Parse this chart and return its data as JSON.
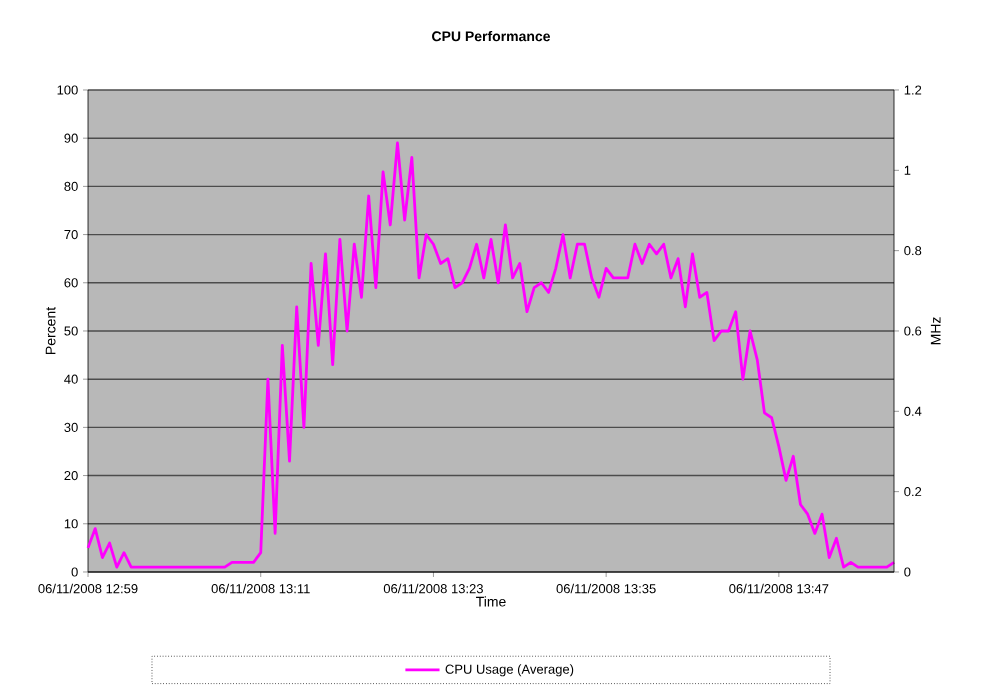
{
  "chart_data": {
    "type": "line",
    "title": "CPU Performance",
    "xlabel": "Time",
    "ylabel": "Percent",
    "y2label": "MHz",
    "categories": [
      "06/11/2008 12:59",
      null,
      null,
      null,
      null,
      null,
      null,
      null,
      null,
      null,
      null,
      null,
      null,
      null,
      null,
      null,
      null,
      null,
      null,
      null,
      null,
      null,
      null,
      null,
      "06/11/2008 13:11",
      null,
      null,
      null,
      null,
      null,
      null,
      null,
      null,
      null,
      null,
      null,
      null,
      null,
      null,
      null,
      null,
      null,
      null,
      null,
      null,
      null,
      null,
      null,
      "06/11/2008 13:23",
      null,
      null,
      null,
      null,
      null,
      null,
      null,
      null,
      null,
      null,
      null,
      null,
      null,
      null,
      null,
      null,
      null,
      null,
      null,
      null,
      null,
      null,
      null,
      "06/11/2008 13:35",
      null,
      null,
      null,
      null,
      null,
      null,
      null,
      null,
      null,
      null,
      null,
      null,
      null,
      null,
      null,
      null,
      null,
      null,
      null,
      null,
      null,
      null,
      null,
      "06/11/2008 13:47",
      null,
      null,
      null,
      null,
      null,
      null,
      null,
      null,
      null,
      null,
      null,
      null,
      null,
      null,
      null,
      null
    ],
    "series": [
      {
        "name": "CPU Usage (Average)",
        "color": "#ff00ff",
        "values": [
          5,
          9,
          3,
          6,
          1,
          4,
          1,
          1,
          1,
          1,
          1,
          1,
          1,
          1,
          1,
          1,
          1,
          1,
          1,
          1,
          2,
          2,
          2,
          2,
          4,
          40,
          8,
          47,
          23,
          55,
          30,
          64,
          47,
          66,
          43,
          69,
          50,
          68,
          57,
          78,
          59,
          83,
          72,
          89,
          73,
          86,
          61,
          70,
          68,
          64,
          65,
          59,
          60,
          63,
          68,
          61,
          69,
          60,
          72,
          61,
          64,
          54,
          59,
          60,
          58,
          63,
          70,
          61,
          68,
          68,
          61,
          57,
          63,
          61,
          61,
          61,
          68,
          64,
          68,
          66,
          68,
          61,
          65,
          55,
          66,
          57,
          58,
          48,
          50,
          50,
          54,
          40,
          50,
          44,
          33,
          32,
          26,
          19,
          24,
          14,
          12,
          8,
          12,
          3,
          7,
          1,
          2,
          1,
          1,
          1,
          1,
          1,
          2
        ]
      }
    ],
    "ylim": [
      0,
      100
    ],
    "yticks": [
      0,
      10,
      20,
      30,
      40,
      50,
      60,
      70,
      80,
      90,
      100
    ],
    "y2lim": [
      0,
      1.2
    ],
    "y2ticks": [
      0,
      0.2,
      0.4,
      0.6,
      0.8,
      1,
      1.2
    ],
    "grid": "y",
    "legend": "bottom",
    "marker": "none",
    "line_style": "solid"
  }
}
